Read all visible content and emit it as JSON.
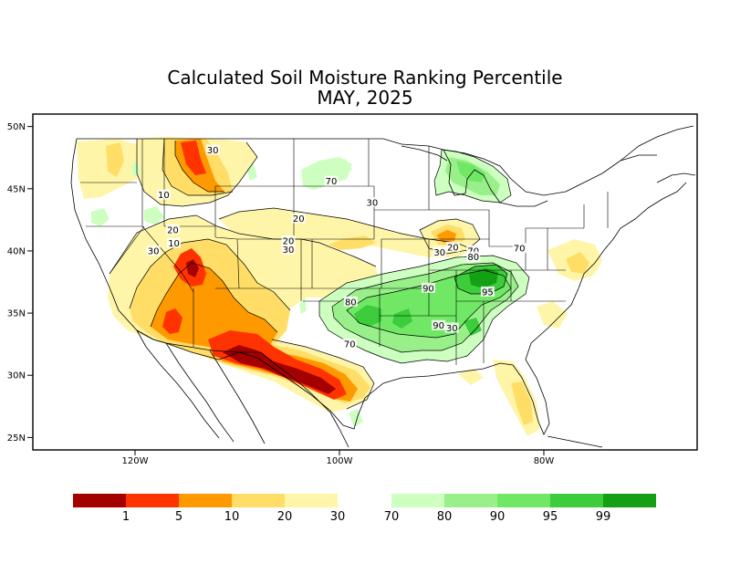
{
  "title": "Calculated Soil Moisture Ranking Percentile",
  "subtitle": "MAY, 2025",
  "lat_ticks": [
    {
      "lat": 50,
      "label": "50N"
    },
    {
      "lat": 45,
      "label": "45N"
    },
    {
      "lat": 40,
      "label": "40N"
    },
    {
      "lat": 35,
      "label": "35N"
    },
    {
      "lat": 30,
      "label": "30N"
    },
    {
      "lat": 25,
      "label": "25N"
    }
  ],
  "lon_ticks": [
    {
      "lon": -120,
      "label": "120W"
    },
    {
      "lon": -100,
      "label": "100W"
    },
    {
      "lon": -80,
      "label": "80W"
    }
  ],
  "colors": {
    "p1": "#a50000",
    "p5": "#ff3300",
    "p10": "#ff9900",
    "p20": "#ffdd66",
    "p30": "#fff5a8",
    "p70": "#ccffc0",
    "p80": "#99f08a",
    "p90": "#70e865",
    "p95": "#3ccc3c",
    "p99": "#14a014"
  },
  "legend": {
    "dry": [
      {
        "color": "#a50000",
        "label": "1"
      },
      {
        "color": "#ff3300",
        "label": "5"
      },
      {
        "color": "#ff9900",
        "label": "10"
      },
      {
        "color": "#ffdd66",
        "label": "20"
      },
      {
        "color": "#fff5a8",
        "label": "30"
      }
    ],
    "wet": [
      {
        "color": "#ccffc0",
        "label": "70"
      },
      {
        "color": "#99f08a",
        "label": "80"
      },
      {
        "color": "#70e865",
        "label": "90"
      },
      {
        "color": "#3ccc3c",
        "label": "95"
      },
      {
        "color": "#14a014",
        "label": ""
      }
    ],
    "wet_end_label": "99"
  },
  "contour_labels": [
    {
      "text": "30",
      "lon": -112.4,
      "lat": 48.1
    },
    {
      "text": "10",
      "lon": -117.2,
      "lat": 44.5
    },
    {
      "text": "70",
      "lon": -100.8,
      "lat": 45.6
    },
    {
      "text": "30",
      "lon": -96.8,
      "lat": 43.9
    },
    {
      "text": "20",
      "lon": -104.0,
      "lat": 42.6
    },
    {
      "text": "20",
      "lon": -116.3,
      "lat": 41.7
    },
    {
      "text": "10",
      "lon": -116.2,
      "lat": 40.6
    },
    {
      "text": "30",
      "lon": -118.2,
      "lat": 40.0
    },
    {
      "text": "20",
      "lon": -105.0,
      "lat": 40.8
    },
    {
      "text": "30",
      "lon": -105.0,
      "lat": 40.1
    },
    {
      "text": "20",
      "lon": -88.9,
      "lat": 40.3
    },
    {
      "text": "30",
      "lon": -90.2,
      "lat": 39.9
    },
    {
      "text": "70",
      "lon": -82.4,
      "lat": 40.2
    },
    {
      "text": "70",
      "lon": -86.9,
      "lat": 40.0
    },
    {
      "text": "80",
      "lon": -86.9,
      "lat": 39.5
    },
    {
      "text": "90",
      "lon": -91.3,
      "lat": 37.0
    },
    {
      "text": "95",
      "lon": -85.5,
      "lat": 36.7
    },
    {
      "text": "80",
      "lon": -98.9,
      "lat": 35.9
    },
    {
      "text": "90",
      "lon": -90.3,
      "lat": 34.0
    },
    {
      "text": "30",
      "lon": -89.0,
      "lat": 33.8
    },
    {
      "text": "70",
      "lon": -99.0,
      "lat": 32.5
    }
  ]
}
